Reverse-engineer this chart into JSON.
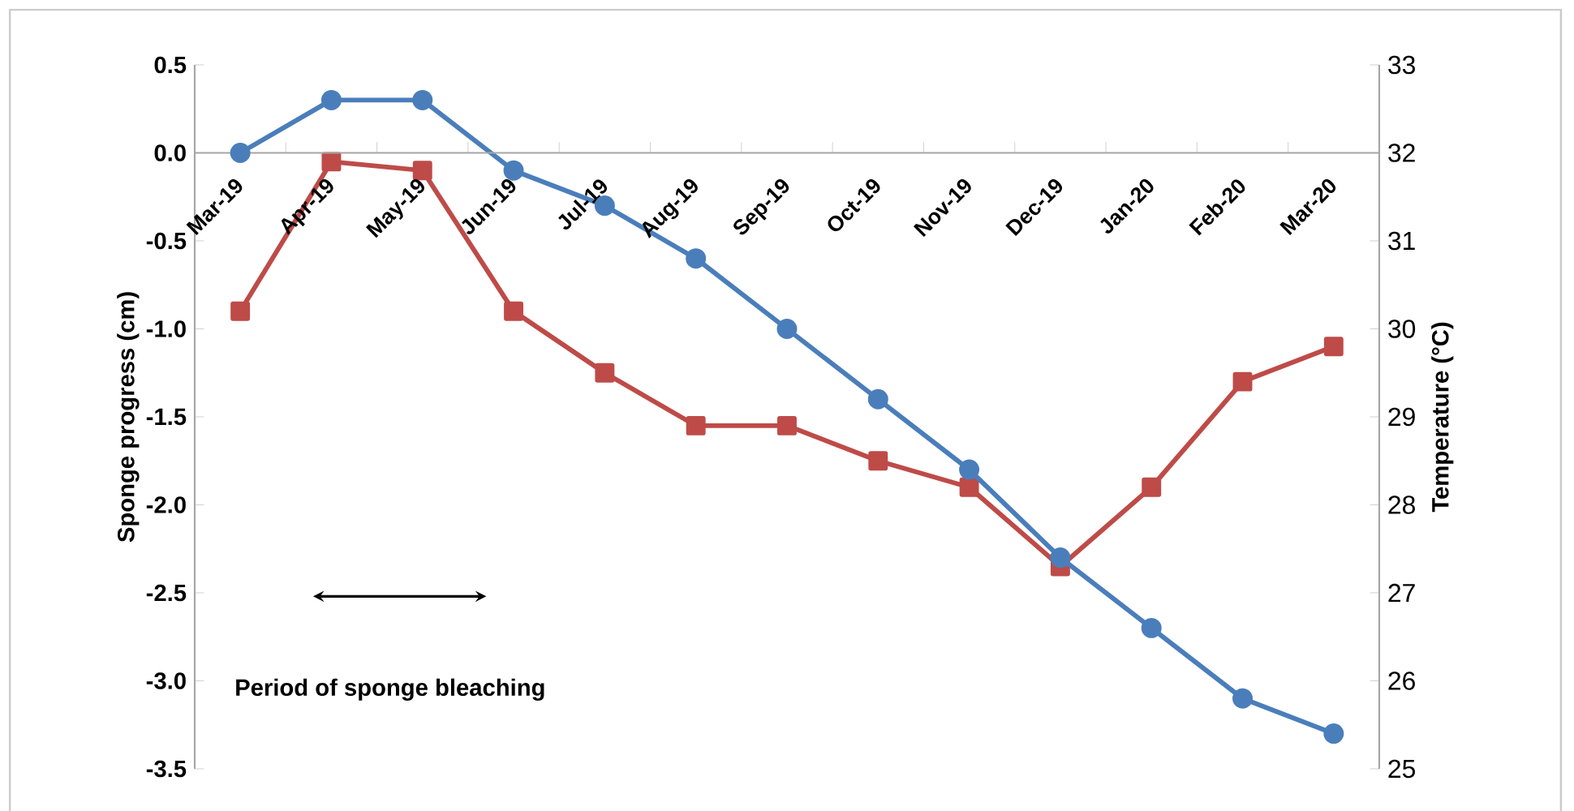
{
  "chart_data": {
    "type": "line",
    "categories": [
      "Mar-19",
      "Apr-19",
      "May-19",
      "Jun-19",
      "Jul-19",
      "Aug-19",
      "Sep-19",
      "Oct-19",
      "Nov-19",
      "Dec-19",
      "Jan-20",
      "Feb-20",
      "Mar-20"
    ],
    "series": [
      {
        "color": "#4a7ebb",
        "marker": "circle",
        "values": [
          0.0,
          0.3,
          0.3,
          -0.1,
          -0.3,
          -0.6,
          -1.0,
          -1.4,
          -1.8,
          -2.3,
          -2.7,
          -3.1,
          -3.3
        ]
      },
      {
        "color": "#be4b48",
        "marker": "square",
        "axis": "y2",
        "values": [
          30.2,
          31.9,
          31.8,
          30.2,
          29.5,
          28.9,
          28.9,
          28.5,
          28.2,
          27.3,
          28.2,
          29.4,
          29.8
        ]
      }
    ],
    "ylabel": "Sponge progress (cm)",
    "y2label": "Temperature (°C)",
    "ylim": [
      -3.5,
      0.5
    ],
    "yticks": [
      {
        "value": -3.5,
        "label": "-3.5"
      },
      {
        "value": -3.0,
        "label": "-3.0"
      },
      {
        "value": -2.5,
        "label": "-2.5"
      },
      {
        "value": -2.0,
        "label": "-2.0"
      },
      {
        "value": -1.5,
        "label": "-1.5"
      },
      {
        "value": -1.0,
        "label": "-1.0"
      },
      {
        "value": -0.5,
        "label": "-0.5"
      },
      {
        "value": 0.0,
        "label": "0.0"
      },
      {
        "value": 0.5,
        "label": "0.5"
      }
    ],
    "y2lim": [
      25,
      33
    ],
    "y2ticks": [
      25,
      26,
      27,
      28,
      29,
      30,
      31,
      32,
      33
    ],
    "annotations": [
      "Period of sponge bleaching"
    ],
    "grid": false
  }
}
